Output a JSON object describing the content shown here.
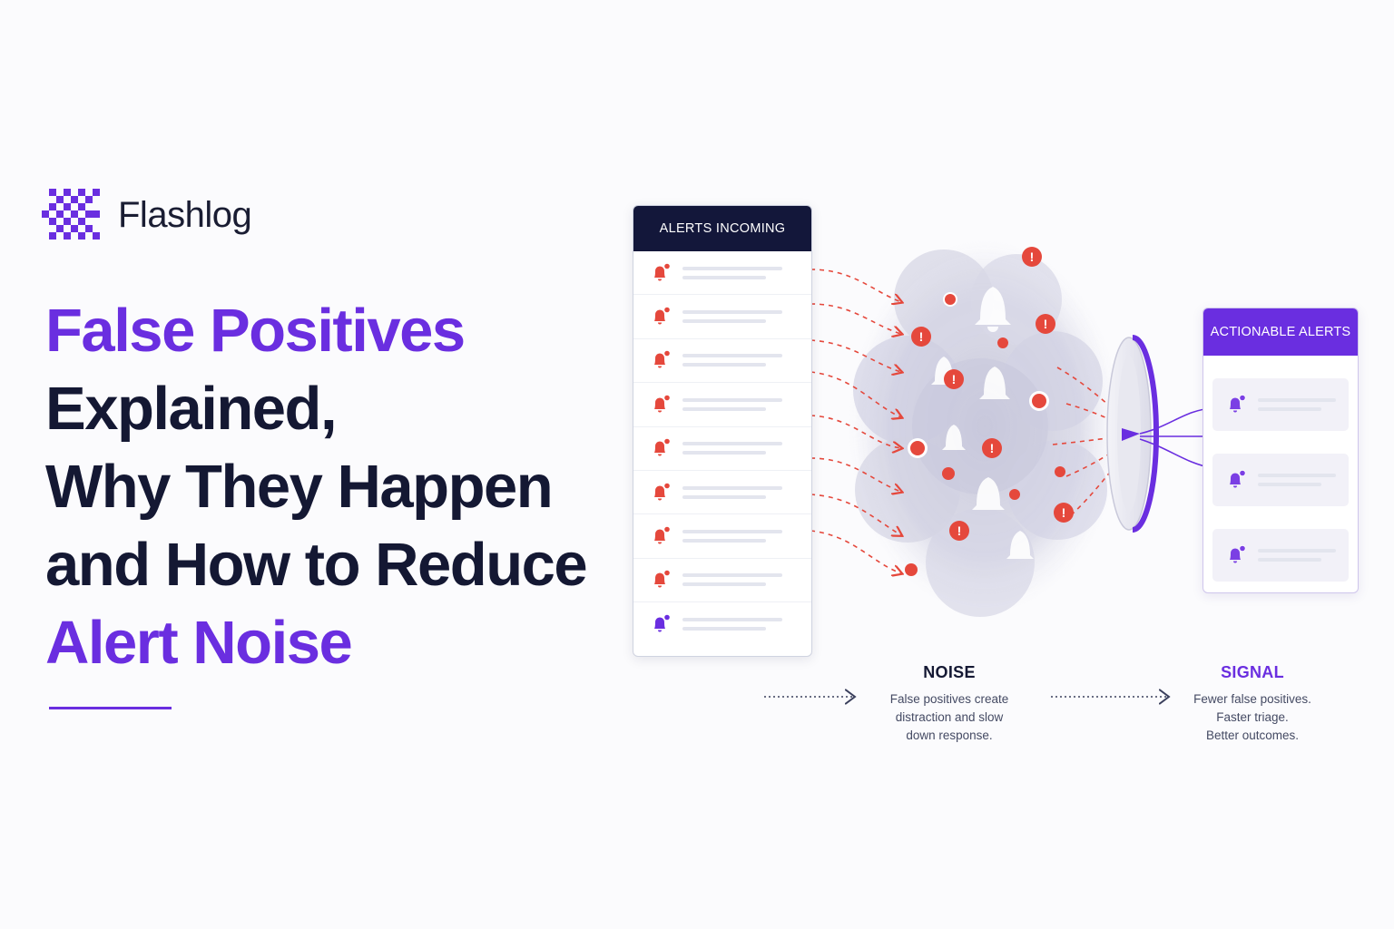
{
  "brand": {
    "name": "Flashlog",
    "logo_icon": "pixel-lightning-icon"
  },
  "headline": {
    "line1": "False Positives",
    "line2": "Explained,",
    "line3": "Why They Happen",
    "line4": "and How to Reduce",
    "line5": "Alert Noise"
  },
  "incoming_panel": {
    "title": "ALERTS INCOMING",
    "rows": [
      {
        "icon": "bell-alert-icon",
        "color": "#e5483c"
      },
      {
        "icon": "bell-alert-icon",
        "color": "#e5483c"
      },
      {
        "icon": "bell-alert-icon",
        "color": "#e5483c"
      },
      {
        "icon": "bell-alert-icon",
        "color": "#e5483c"
      },
      {
        "icon": "bell-alert-icon",
        "color": "#e5483c"
      },
      {
        "icon": "bell-alert-icon",
        "color": "#e5483c"
      },
      {
        "icon": "bell-alert-icon",
        "color": "#e5483c"
      },
      {
        "icon": "bell-alert-icon",
        "color": "#e5483c"
      },
      {
        "icon": "bell-alert-icon",
        "color": "#6a2ee0"
      }
    ]
  },
  "actionable_panel": {
    "title": "ACTIONABLE ALERTS",
    "cards": [
      {
        "icon": "bell-alert-icon",
        "color": "#7b3fe4"
      },
      {
        "icon": "bell-alert-icon",
        "color": "#7b3fe4"
      },
      {
        "icon": "bell-alert-icon",
        "color": "#7b3fe4"
      }
    ]
  },
  "noise": {
    "title": "NOISE",
    "line1": "False positives create",
    "line2": "distraction and slow",
    "line3": "down response."
  },
  "signal": {
    "title": "SIGNAL",
    "line1": "Fewer false positives.",
    "line2": "Faster triage.",
    "line3": "Better outcomes."
  },
  "colors": {
    "accent": "#6a2ee0",
    "navy": "#13173a",
    "alert_red": "#e5483c",
    "noise_cloud": "#c9c9dc"
  }
}
